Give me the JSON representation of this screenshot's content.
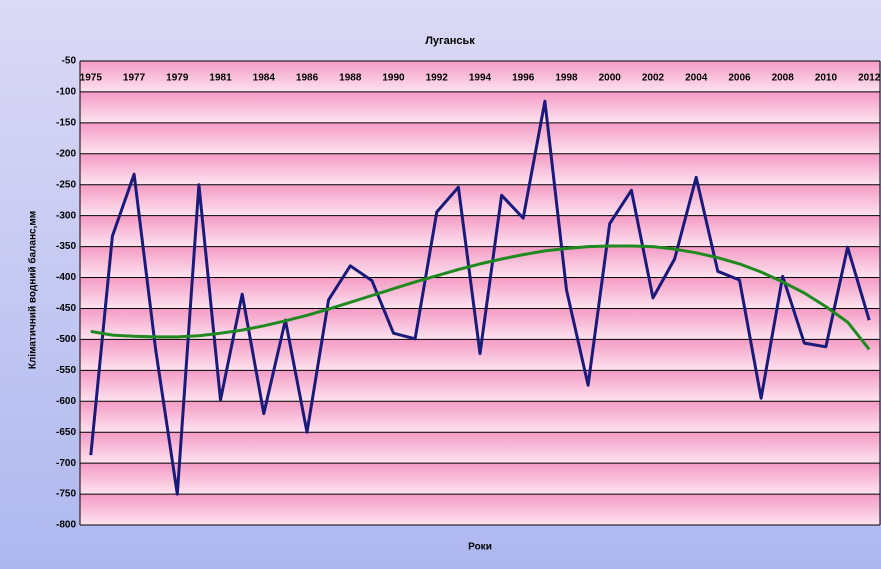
{
  "chart_data": {
    "type": "line",
    "title": "Луганськ",
    "x_label": "Роки",
    "y_label": "Кліматичний водний баланс,мм",
    "categories": [
      "1975",
      null,
      "1977",
      null,
      "1979",
      null,
      "1981",
      null,
      "1984",
      null,
      "1986",
      null,
      "1988",
      null,
      "1990",
      null,
      "1992",
      null,
      "1994",
      null,
      "1996",
      null,
      "1998",
      null,
      "2000",
      null,
      "2002",
      null,
      "2004",
      null,
      "2006",
      null,
      "2008",
      null,
      "2010",
      null,
      "2012"
    ],
    "series": [
      {
        "color": "#1a1a7a",
        "values": [
          -687,
          -333,
          -233,
          -517,
          -750,
          -250,
          -598,
          -427,
          -620,
          -469,
          -650,
          -436,
          -381,
          -405,
          -490,
          -499,
          -294,
          -254,
          -523,
          -267,
          -304,
          -115,
          -420,
          -574,
          -313,
          -259,
          -433,
          -370,
          -238,
          -390,
          -404,
          -595,
          -398,
          -506,
          -512,
          -351,
          -469
        ]
      },
      {
        "color": "#1f8a1f",
        "values": [
          -487,
          -493,
          -495,
          -496,
          -496,
          -494,
          -490,
          -485,
          -478,
          -470,
          -461,
          -451,
          -440,
          -429,
          -418,
          -407,
          -397,
          -387,
          -378,
          -370,
          -363,
          -357,
          -353,
          -350,
          -349,
          -349,
          -350,
          -354,
          -360,
          -368,
          -378,
          -391,
          -407,
          -425,
          -447,
          -472,
          -516
        ]
      }
    ],
    "ylim": [
      -800,
      -50
    ],
    "yticks": [
      -50,
      -100,
      -150,
      -200,
      -250,
      -300,
      -350,
      -400,
      -450,
      -500,
      -550,
      -600,
      -650,
      -700,
      -750,
      -800
    ],
    "grid": true
  }
}
